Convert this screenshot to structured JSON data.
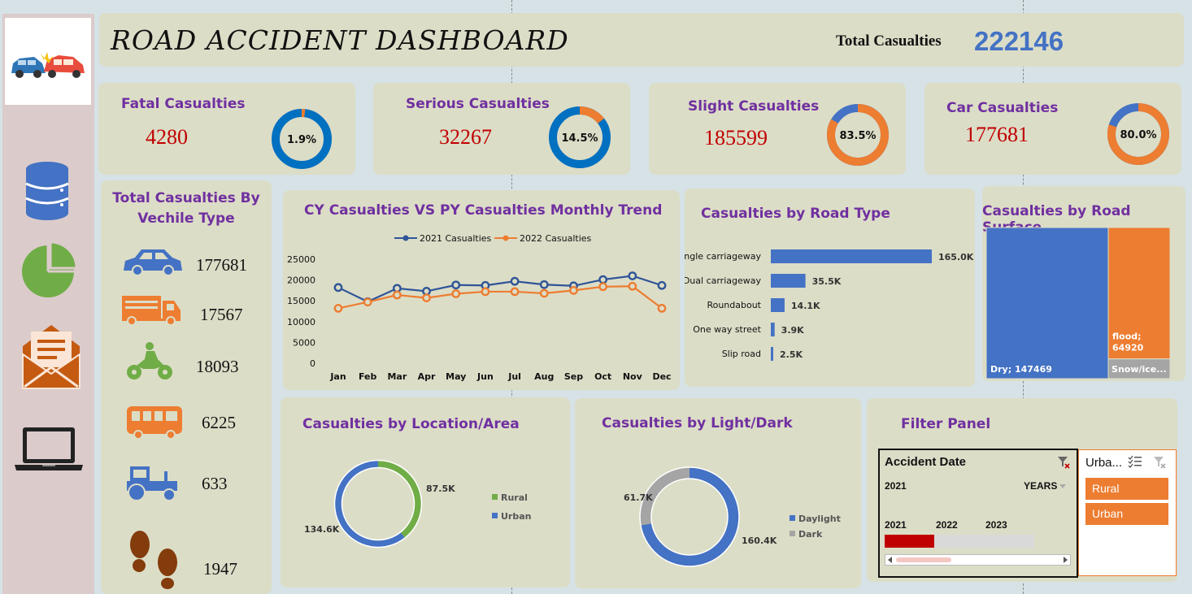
{
  "header": {
    "title": "ROAD ACCIDENT DASHBOARD",
    "total_label": "Total Casualties",
    "total_value": "222146"
  },
  "sidebar": {
    "icons": [
      "database-icon",
      "pie-chart-icon",
      "mail-icon",
      "laptop-icon"
    ]
  },
  "kpis": [
    {
      "title": "Fatal Casualties",
      "value": "4280",
      "pct_label": "1.9%",
      "pct": 1.9
    },
    {
      "title": "Serious Casualties",
      "value": "32267",
      "pct_label": "14.5%",
      "pct": 14.5
    },
    {
      "title": "Slight Casualties",
      "value": "185599",
      "pct_label": "83.5%",
      "pct": 83.5
    },
    {
      "title": "Car Casualties",
      "value": "177681",
      "pct_label": "80.0%",
      "pct": 80.0
    }
  ],
  "vehicles": {
    "title_line1": "Total Casualties By",
    "title_line2": "Vechile Type",
    "items": [
      {
        "icon": "car-icon",
        "value": "177681"
      },
      {
        "icon": "truck-icon",
        "value": "17567"
      },
      {
        "icon": "motorcycle-icon",
        "value": "18093"
      },
      {
        "icon": "bus-icon",
        "value": "6225"
      },
      {
        "icon": "tractor-icon",
        "value": "633"
      },
      {
        "icon": "footprints-icon",
        "value": "1947"
      }
    ]
  },
  "colors": {
    "blue": "#4472c4",
    "orange": "#ed7d31",
    "green": "#70ad47",
    "grey": "#a5a5a5",
    "purple": "#7030a0",
    "red": "#c00000"
  },
  "chart_data": [
    {
      "type": "line",
      "title": "CY Casualties VS PY Casualties Monthly Trend",
      "categories": [
        "Jan",
        "Feb",
        "Mar",
        "Apr",
        "May",
        "Jun",
        "Jul",
        "Aug",
        "Sep",
        "Oct",
        "Nov",
        "Dec"
      ],
      "series": [
        {
          "name": "2021 Casualties",
          "values": [
            18200,
            14800,
            18000,
            17300,
            18800,
            18700,
            19700,
            18900,
            18600,
            20100,
            21000,
            18700
          ]
        },
        {
          "name": "2022 Casualties",
          "values": [
            13200,
            14700,
            16400,
            15700,
            16700,
            17200,
            17200,
            16800,
            17500,
            18400,
            18500,
            13200
          ]
        }
      ],
      "ylim": [
        0,
        25000
      ],
      "yticks": [
        "25000",
        "20000",
        "15000",
        "10000",
        "5000",
        "0"
      ],
      "legend": "top"
    },
    {
      "type": "bar",
      "title": "Casualties by Road Type",
      "categories": [
        "Single carriageway",
        "Dual carriageway",
        "Roundabout",
        "One way street",
        "Slip road"
      ],
      "values": [
        165000,
        35500,
        14100,
        3900,
        2500
      ],
      "labels": [
        "165.0K",
        "35.5K",
        "14.1K",
        "3.9K",
        "2.5K"
      ]
    },
    {
      "type": "treemap",
      "title": "Casualties by Road Surface",
      "items": [
        {
          "label": "Dry; 147469",
          "value": 147469
        },
        {
          "label_line1": "flood;",
          "label_line2": "64920",
          "value": 64920
        },
        {
          "label": "Snow/ice...",
          "value": 9757
        }
      ]
    },
    {
      "type": "pie",
      "title": "Casualties by Location/Area",
      "slices": [
        {
          "name": "Rural",
          "value": 87.5,
          "label": "87.5K"
        },
        {
          "name": "Urban",
          "value": 134.6,
          "label": "134.6K"
        }
      ]
    },
    {
      "type": "pie",
      "title": "Casualties by Light/Dark",
      "slices": [
        {
          "name": "Daylight",
          "value": 160.4,
          "label": "160.4K"
        },
        {
          "name": "Dark",
          "value": 61.7,
          "label": "61.7K"
        }
      ]
    }
  ],
  "filter_panel": {
    "title": "Filter Panel",
    "timeline": {
      "title": "Accident Date",
      "selected": "2021",
      "level": "YEARS",
      "years": [
        "2021",
        "2022",
        "2023"
      ]
    },
    "slicer": {
      "title": "Urba...",
      "items": [
        "Rural",
        "Urban"
      ]
    }
  }
}
